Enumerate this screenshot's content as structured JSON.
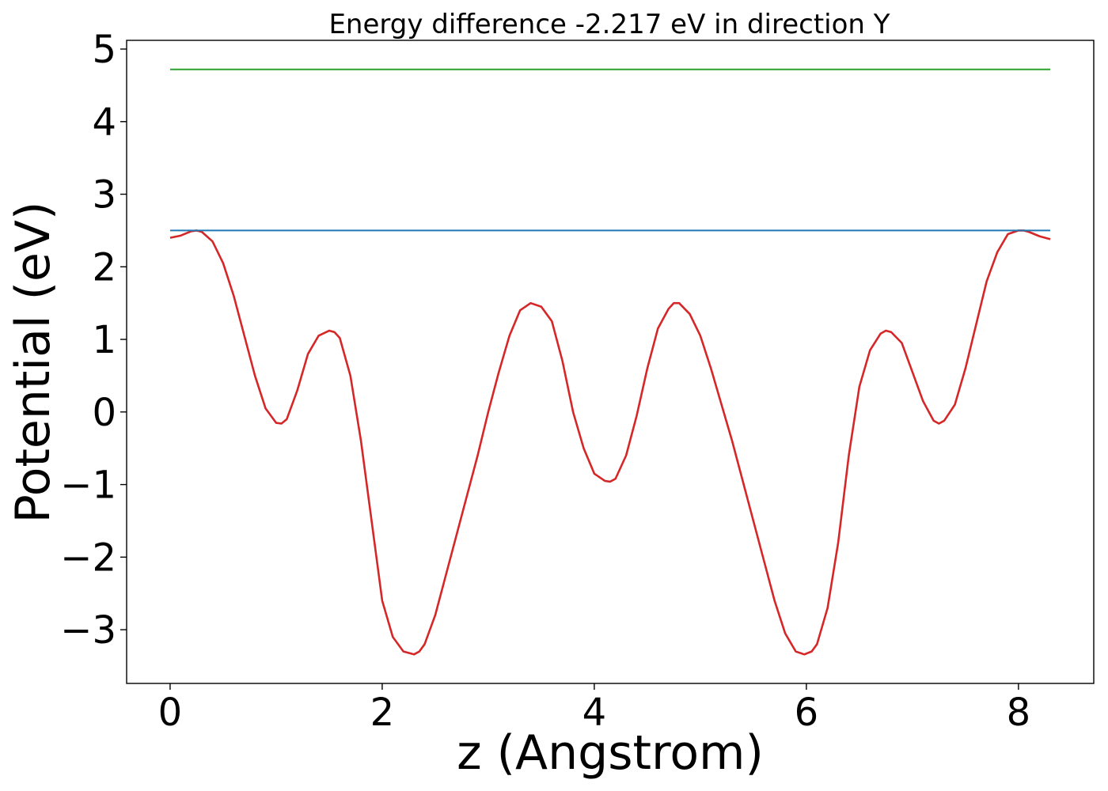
{
  "chart_data": {
    "type": "line",
    "title": "Energy difference -2.217 eV in direction Y",
    "xlabel": "z (Angstrom)",
    "ylabel": "Potential (eV)",
    "xlim": [
      -0.41,
      8.71
    ],
    "ylim": [
      -3.74,
      5.12
    ],
    "xticks": [
      0,
      2,
      4,
      6,
      8
    ],
    "xtick_labels": [
      "0",
      "2",
      "4",
      "6",
      "8"
    ],
    "yticks": [
      -3,
      -2,
      -1,
      0,
      1,
      2,
      3,
      4,
      5
    ],
    "ytick_labels": [
      "−3",
      "−2",
      "−1",
      "0",
      "1",
      "2",
      "3",
      "4",
      "5"
    ],
    "grid": false,
    "legend": "none",
    "series": [
      {
        "color": "#d62728",
        "x": [
          0,
          0.1,
          0.2,
          0.25,
          0.3,
          0.4,
          0.5,
          0.6,
          0.7,
          0.8,
          0.9,
          1.0,
          1.05,
          1.1,
          1.2,
          1.3,
          1.4,
          1.5,
          1.55,
          1.6,
          1.7,
          1.8,
          1.9,
          2.0,
          2.1,
          2.2,
          2.3,
          2.35,
          2.4,
          2.5,
          2.6,
          2.7,
          2.8,
          2.9,
          3.0,
          3.1,
          3.2,
          3.3,
          3.4,
          3.5,
          3.55,
          3.6,
          3.7,
          3.8,
          3.9,
          4.0,
          4.1,
          4.15,
          4.2,
          4.3,
          4.4,
          4.5,
          4.6,
          4.7,
          4.75,
          4.8,
          4.9,
          5.0,
          5.1,
          5.2,
          5.3,
          5.4,
          5.5,
          5.6,
          5.7,
          5.8,
          5.9,
          5.98,
          6.05,
          6.1,
          6.2,
          6.3,
          6.4,
          6.5,
          6.6,
          6.7,
          6.75,
          6.8,
          6.9,
          7.0,
          7.1,
          7.2,
          7.25,
          7.3,
          7.4,
          7.5,
          7.6,
          7.7,
          7.8,
          7.9,
          8.0,
          8.05,
          8.1,
          8.2,
          8.3
        ],
        "y": [
          2.4,
          2.43,
          2.49,
          2.5,
          2.48,
          2.35,
          2.05,
          1.6,
          1.05,
          0.5,
          0.05,
          -0.15,
          -0.16,
          -0.1,
          0.3,
          0.8,
          1.05,
          1.12,
          1.1,
          1.02,
          0.5,
          -0.4,
          -1.5,
          -2.6,
          -3.1,
          -3.3,
          -3.34,
          -3.3,
          -3.2,
          -2.8,
          -2.25,
          -1.7,
          -1.15,
          -0.6,
          0.0,
          0.55,
          1.05,
          1.4,
          1.5,
          1.45,
          1.35,
          1.25,
          0.7,
          0.0,
          -0.5,
          -0.85,
          -0.95,
          -0.96,
          -0.92,
          -0.6,
          -0.05,
          0.6,
          1.15,
          1.42,
          1.5,
          1.5,
          1.35,
          1.05,
          0.6,
          0.1,
          -0.4,
          -0.95,
          -1.5,
          -2.05,
          -2.6,
          -3.05,
          -3.3,
          -3.34,
          -3.3,
          -3.2,
          -2.7,
          -1.8,
          -0.6,
          0.35,
          0.85,
          1.08,
          1.12,
          1.1,
          0.95,
          0.55,
          0.15,
          -0.12,
          -0.16,
          -0.12,
          0.1,
          0.6,
          1.2,
          1.8,
          2.2,
          2.45,
          2.5,
          2.5,
          2.48,
          2.42,
          2.38
        ]
      },
      {
        "color": "#1f77b4",
        "x": [
          0,
          8.3
        ],
        "y": [
          2.5,
          2.5
        ]
      },
      {
        "color": "#2ca02c",
        "x": [
          0,
          8.3
        ],
        "y": [
          4.72,
          4.72
        ]
      }
    ]
  }
}
